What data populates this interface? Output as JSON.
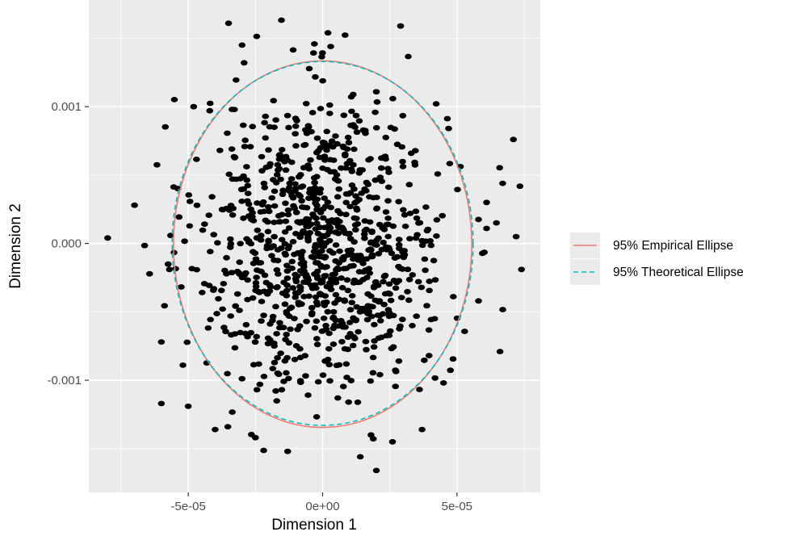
{
  "chart_data": {
    "type": "scatter",
    "xlabel": "Dimension 1",
    "ylabel": "Dimension 2",
    "xlim": [
      -8.7e-05,
      8.1e-05
    ],
    "ylim": [
      -0.00182,
      0.00178
    ],
    "x_ticks": [
      {
        "value": -5e-05,
        "label": "-5e-05"
      },
      {
        "value": 0,
        "label": "0e+00"
      },
      {
        "value": 5e-05,
        "label": "5e-05"
      }
    ],
    "y_ticks": [
      {
        "value": 0.001,
        "label": "0.001"
      },
      {
        "value": 0,
        "label": "0.000"
      },
      {
        "value": -0.001,
        "label": "-0.001"
      }
    ],
    "grid": true,
    "legend_position": "right",
    "legend": [
      {
        "label": "95% Empirical Ellipse",
        "color": "#F8766D",
        "linetype": "solid"
      },
      {
        "label": "95% Theoretical Ellipse",
        "color": "#00BFC4",
        "linetype": "dashed"
      }
    ],
    "ellipses": [
      {
        "name": "95% Empirical Ellipse",
        "center": [
          0.0,
          -5e-06
        ],
        "rx": 5.55e-05,
        "ry": 0.00134,
        "color": "#F8766D",
        "dash": false
      },
      {
        "name": "95% Theoretical Ellipse",
        "center": [
          0.0,
          0.0
        ],
        "rx": 5.6e-05,
        "ry": 0.00133,
        "color": "#00BFC4",
        "dash": true
      }
    ],
    "point_color": "#000000",
    "n_points": 1000,
    "outliers": [
      [
        -8e-05,
        4e-05
      ],
      [
        -7e-05,
        0.00028
      ],
      [
        -6e-05,
        -0.00072
      ],
      [
        -6e-05,
        -0.00117
      ],
      [
        -5.7e-05,
        -0.00019
      ],
      [
        -5.2e-05,
        -0.00089
      ],
      [
        -5e-05,
        -0.00119
      ],
      [
        -4.8e-05,
        0.001
      ],
      [
        -3.5e-05,
        0.00161
      ],
      [
        -3e-05,
        0.00145
      ],
      [
        -4e-05,
        -0.00136
      ],
      [
        -2.5e-05,
        -0.00142
      ],
      [
        2.9e-05,
        0.00159
      ],
      [
        7.1e-05,
        0.00076
      ],
      [
        7.2e-05,
        5e-05
      ],
      [
        7.4e-05,
        -0.00019
      ],
      [
        6.7e-05,
        0.00044
      ],
      [
        6.1e-05,
        0.0003
      ],
      [
        6.6e-05,
        -0.00079
      ],
      [
        5.8e-05,
        -0.00042
      ],
      [
        6.1e-05,
        0.00011
      ],
      [
        4.5e-05,
        -0.00102
      ],
      [
        3.7e-05,
        -0.00136
      ],
      [
        2.6e-05,
        -0.00145
      ],
      [
        2e-05,
        -0.00166
      ],
      [
        1.4e-05,
        -0.00156
      ],
      [
        -1.3e-05,
        -0.00152
      ],
      [
        2e-06,
        0.00154
      ],
      [
        3e-06,
        0.00144
      ],
      [
        -1.8e-05,
        0.00085
      ],
      [
        1.8e-05,
        -0.0014
      ]
    ]
  }
}
